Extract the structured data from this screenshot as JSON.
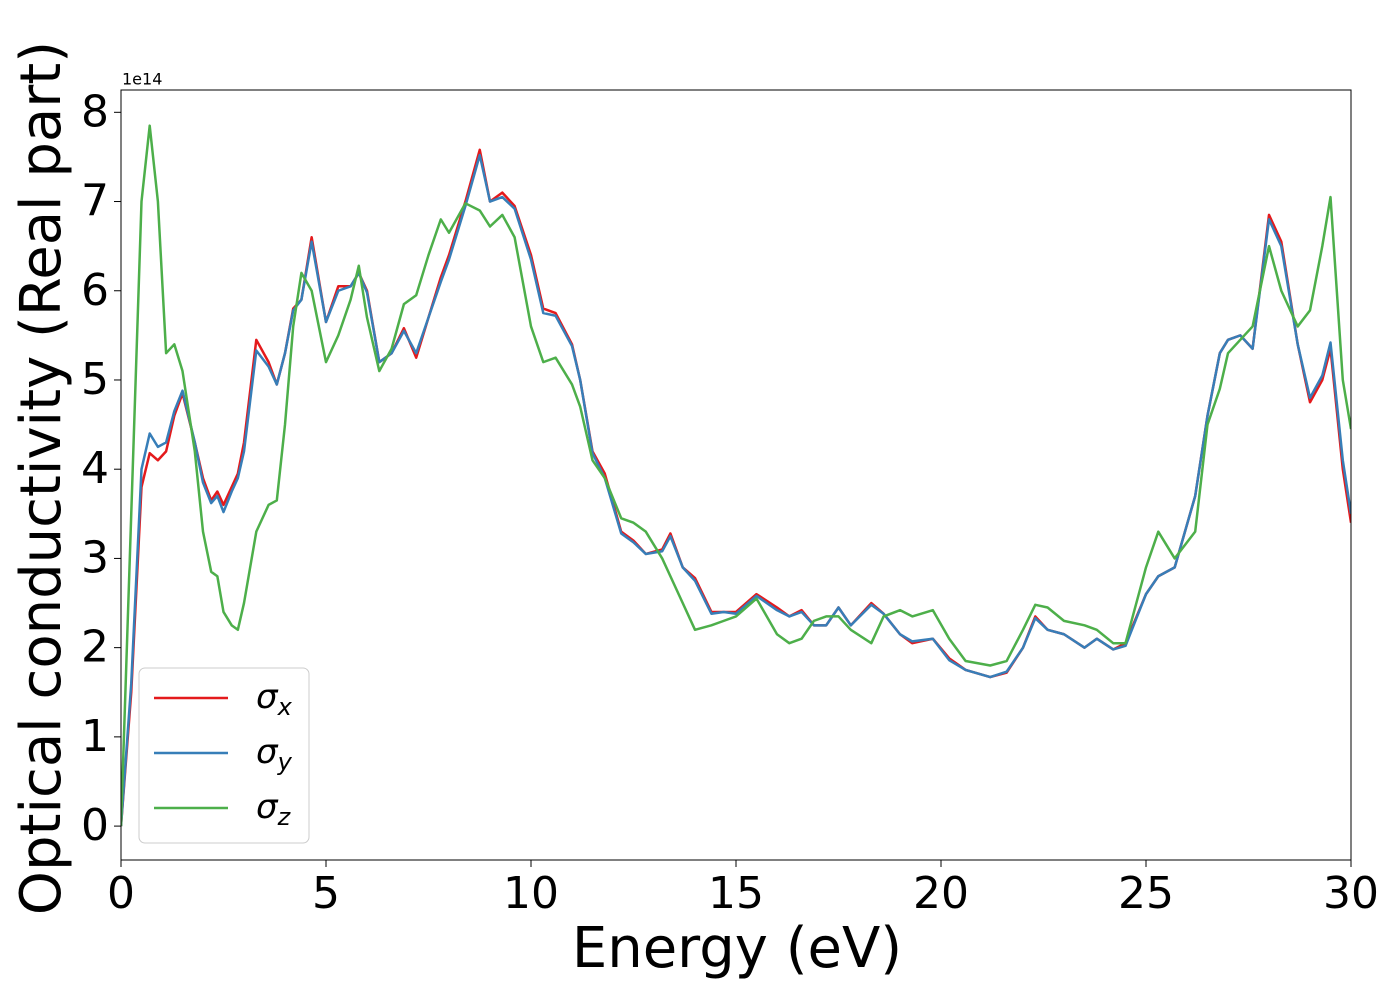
{
  "chart_data": {
    "type": "line",
    "x_label": "Energy (eV)",
    "y_label": "Optical conductivity (Real part)",
    "y_offset_label": "1e14",
    "xlim": [
      0,
      30
    ],
    "xticks": [
      0,
      5,
      10,
      15,
      20,
      25,
      30
    ],
    "ylim": [
      -0.38,
      8.25
    ],
    "yticks": [
      0,
      1,
      2,
      3,
      4,
      5,
      6,
      7,
      8
    ],
    "legend": "lower left",
    "x": [
      0,
      0.25,
      0.5,
      0.7,
      0.9,
      1.1,
      1.3,
      1.5,
      1.8,
      2.0,
      2.2,
      2.35,
      2.5,
      2.7,
      2.85,
      3.0,
      3.3,
      3.6,
      3.8,
      4.0,
      4.2,
      4.4,
      4.65,
      5.0,
      5.3,
      5.6,
      5.8,
      6.0,
      6.3,
      6.6,
      6.9,
      7.2,
      7.5,
      7.8,
      8.0,
      8.4,
      8.75,
      9.0,
      9.3,
      9.6,
      10.0,
      10.3,
      10.6,
      11.0,
      11.2,
      11.5,
      11.8,
      12.2,
      12.5,
      12.8,
      13.2,
      13.4,
      13.7,
      14.0,
      14.4,
      14.7,
      15.0,
      15.5,
      16.0,
      16.3,
      16.6,
      16.9,
      17.2,
      17.5,
      17.8,
      18.3,
      18.6,
      19.0,
      19.3,
      19.8,
      20.2,
      20.6,
      21.2,
      21.6,
      22.0,
      22.3,
      22.6,
      23.0,
      23.5,
      23.8,
      24.2,
      24.5,
      25.0,
      25.3,
      25.7,
      26.2,
      26.5,
      26.8,
      27.0,
      27.3,
      27.6,
      28.0,
      28.3,
      28.7,
      29.0,
      29.3,
      29.5,
      29.8,
      30.0
    ],
    "series": [
      {
        "name": "σx",
        "color": "#e41a1c",
        "values": [
          0,
          1.5,
          3.8,
          4.18,
          4.1,
          4.2,
          4.6,
          4.85,
          4.3,
          3.9,
          3.65,
          3.75,
          3.6,
          3.8,
          3.95,
          4.3,
          5.45,
          5.2,
          4.95,
          5.3,
          5.8,
          5.9,
          6.6,
          5.65,
          6.05,
          6.05,
          6.2,
          6.0,
          5.2,
          5.3,
          5.58,
          5.25,
          5.7,
          6.15,
          6.4,
          7.0,
          7.58,
          7.0,
          7.1,
          6.95,
          6.4,
          5.8,
          5.75,
          5.4,
          5.0,
          4.2,
          3.95,
          3.3,
          3.2,
          3.05,
          3.1,
          3.28,
          2.9,
          2.78,
          2.4,
          2.4,
          2.4,
          2.6,
          2.45,
          2.35,
          2.42,
          2.25,
          2.25,
          2.45,
          2.25,
          2.5,
          2.38,
          2.15,
          2.05,
          2.1,
          1.88,
          1.75,
          1.67,
          1.72,
          2.0,
          2.35,
          2.2,
          2.15,
          2.0,
          2.1,
          1.98,
          2.05,
          2.6,
          2.8,
          2.9,
          3.7,
          4.6,
          5.3,
          5.45,
          5.5,
          5.35,
          6.85,
          6.55,
          5.4,
          4.75,
          5.0,
          5.35,
          4.0,
          3.4
        ]
      },
      {
        "name": "σy",
        "color": "#377eb8",
        "values": [
          0,
          1.6,
          4.0,
          4.4,
          4.25,
          4.3,
          4.65,
          4.88,
          4.3,
          3.85,
          3.62,
          3.7,
          3.52,
          3.75,
          3.9,
          4.2,
          5.33,
          5.15,
          4.95,
          5.3,
          5.78,
          5.9,
          6.55,
          5.65,
          6.0,
          6.05,
          6.2,
          5.98,
          5.2,
          5.3,
          5.55,
          5.3,
          5.7,
          6.1,
          6.35,
          6.95,
          7.52,
          7.0,
          7.05,
          6.92,
          6.35,
          5.75,
          5.72,
          5.38,
          5.0,
          4.18,
          3.9,
          3.28,
          3.18,
          3.05,
          3.08,
          3.25,
          2.9,
          2.75,
          2.38,
          2.4,
          2.38,
          2.58,
          2.42,
          2.35,
          2.4,
          2.25,
          2.25,
          2.45,
          2.25,
          2.48,
          2.38,
          2.15,
          2.07,
          2.1,
          1.86,
          1.75,
          1.67,
          1.73,
          2.0,
          2.33,
          2.2,
          2.15,
          2.0,
          2.1,
          1.98,
          2.02,
          2.6,
          2.8,
          2.9,
          3.7,
          4.6,
          5.3,
          5.45,
          5.5,
          5.35,
          6.8,
          6.5,
          5.4,
          4.8,
          5.05,
          5.42,
          4.1,
          3.5
        ]
      },
      {
        "name": "σz",
        "color": "#4daf4a",
        "values": [
          0,
          3.5,
          7.0,
          7.85,
          7.0,
          5.3,
          5.4,
          5.1,
          4.2,
          3.3,
          2.85,
          2.8,
          2.4,
          2.25,
          2.2,
          2.5,
          3.3,
          3.6,
          3.65,
          4.5,
          5.6,
          6.2,
          6.0,
          5.2,
          5.5,
          5.9,
          6.28,
          5.7,
          5.1,
          5.35,
          5.85,
          5.95,
          6.4,
          6.8,
          6.65,
          6.98,
          6.9,
          6.72,
          6.85,
          6.6,
          5.6,
          5.2,
          5.25,
          4.95,
          4.7,
          4.1,
          3.9,
          3.45,
          3.4,
          3.3,
          3.0,
          2.8,
          2.5,
          2.2,
          2.25,
          2.3,
          2.35,
          2.55,
          2.15,
          2.05,
          2.1,
          2.3,
          2.35,
          2.35,
          2.2,
          2.05,
          2.35,
          2.42,
          2.35,
          2.42,
          2.1,
          1.85,
          1.8,
          1.85,
          2.2,
          2.48,
          2.45,
          2.3,
          2.25,
          2.2,
          2.05,
          2.05,
          2.9,
          3.3,
          3.0,
          3.3,
          4.5,
          4.9,
          5.3,
          5.45,
          5.6,
          6.5,
          6.0,
          5.6,
          5.78,
          6.5,
          7.05,
          5.0,
          4.45
        ]
      }
    ]
  }
}
